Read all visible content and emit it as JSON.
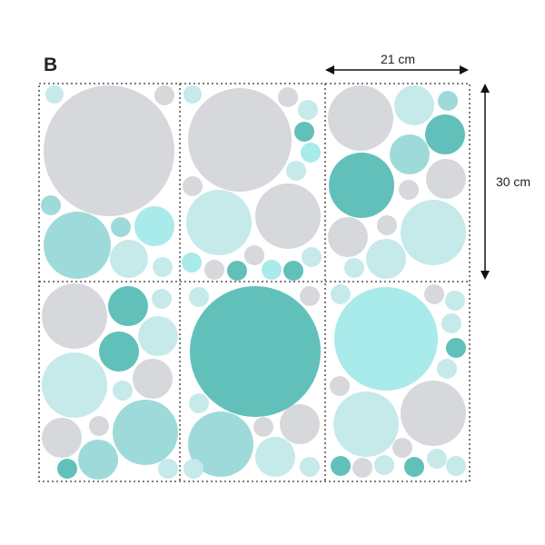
{
  "label": "B",
  "width_dimension": "21 cm",
  "height_dimension": "30 cm"
}
